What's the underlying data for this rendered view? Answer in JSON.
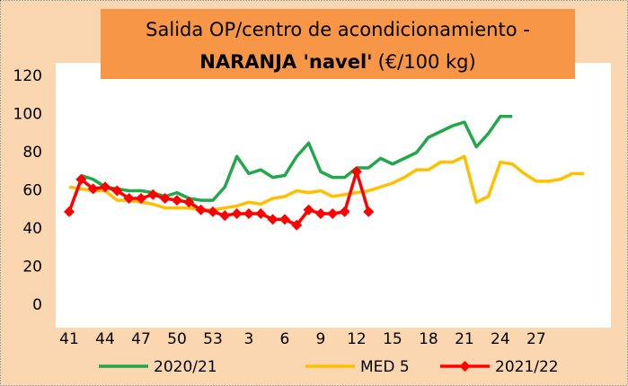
{
  "chart_data": {
    "type": "line",
    "title": [
      "Salida OP/centro de acondicionamiento -",
      "NARANJA 'navel'",
      "(€/100 kg)"
    ],
    "categories": [
      41,
      null,
      null,
      44,
      null,
      null,
      47,
      null,
      null,
      50,
      null,
      null,
      53,
      null,
      null,
      3,
      null,
      null,
      6,
      null,
      null,
      9,
      null,
      null,
      12,
      null,
      null,
      15,
      null,
      null,
      18,
      null,
      null,
      21,
      null,
      null,
      24,
      null,
      null,
      27,
      null,
      null,
      null,
      null
    ],
    "series": [
      {
        "name": "2020/21",
        "color": "#22a84a",
        "values": [
          null,
          68,
          66,
          62,
          61,
          60,
          60,
          59,
          57,
          59,
          56,
          55,
          55,
          62,
          78,
          69,
          71,
          67,
          68,
          78,
          85,
          70,
          67,
          67,
          72,
          72,
          77,
          74,
          77,
          80,
          88,
          91,
          94,
          96,
          83,
          90,
          99,
          99,
          null,
          null,
          null,
          null,
          null,
          null
        ]
      },
      {
        "name": "MED 5",
        "color": "#ffc000",
        "values": [
          62,
          61,
          60,
          60,
          55,
          55,
          54,
          53,
          51,
          51,
          51,
          50,
          50,
          51,
          52,
          54,
          53,
          56,
          57,
          60,
          59,
          60,
          57,
          58,
          59,
          60,
          62,
          64,
          67,
          71,
          71,
          75,
          75,
          78,
          54,
          57,
          75,
          74,
          69,
          65,
          65,
          66,
          69,
          69
        ]
      },
      {
        "name": "2021/22",
        "color": "#ff0000",
        "marker": "diamond",
        "values": [
          49,
          66,
          61,
          62,
          60,
          56,
          56,
          58,
          56,
          55,
          54,
          50,
          49,
          47,
          48,
          48,
          48,
          45,
          45,
          42,
          50,
          48,
          48,
          49,
          70,
          49,
          null,
          null,
          null,
          null,
          null,
          null,
          null,
          null,
          null,
          null,
          null,
          null,
          null,
          null,
          null,
          null,
          null,
          null
        ]
      }
    ],
    "ylim": [
      0,
      120
    ],
    "yticks": [
      0,
      20,
      40,
      60,
      80,
      100,
      120
    ],
    "grid": false
  }
}
